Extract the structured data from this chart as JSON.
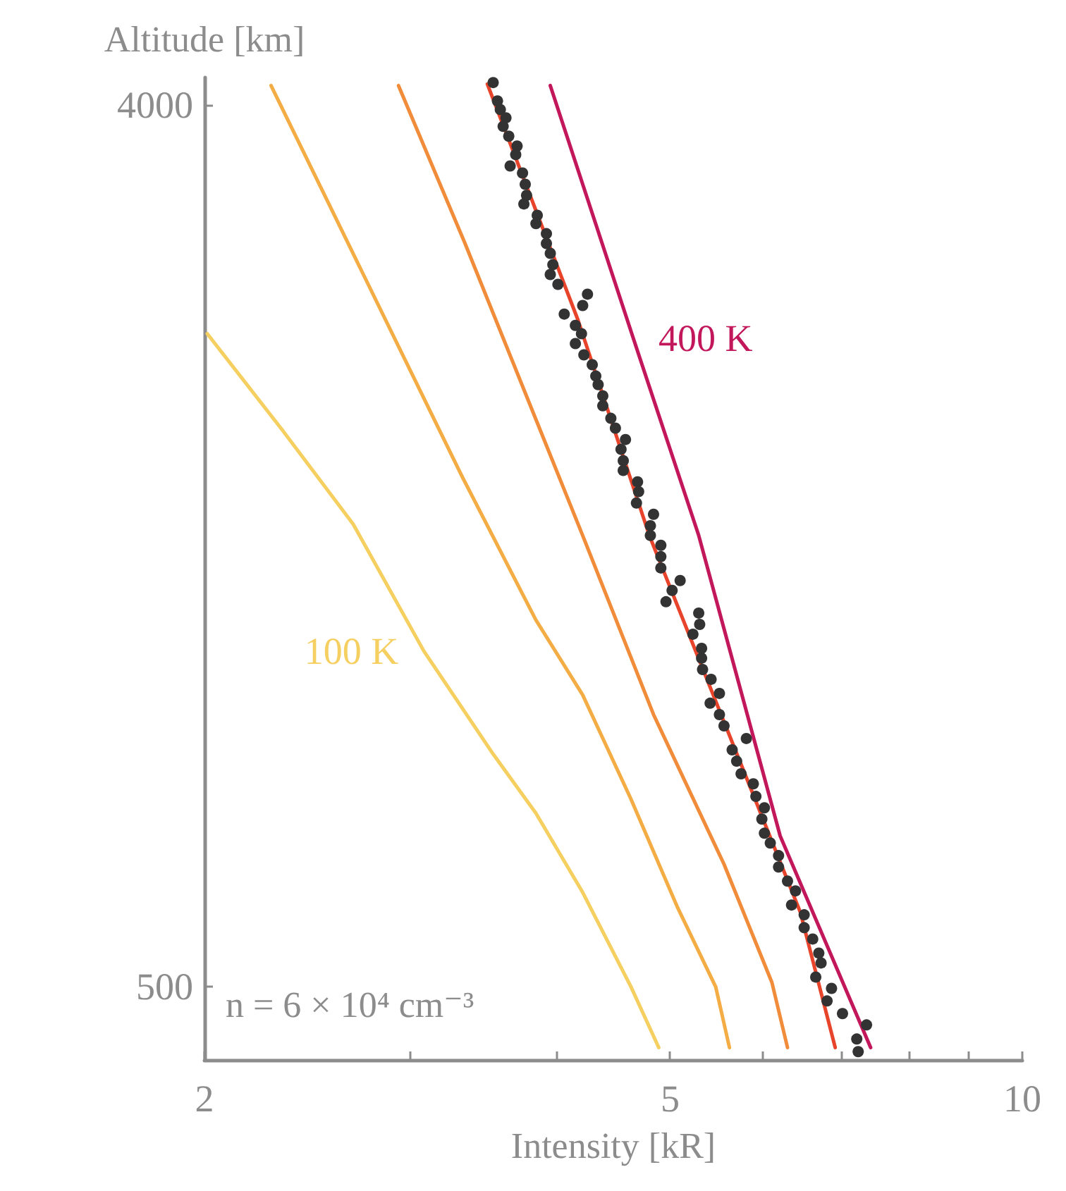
{
  "chart_data": {
    "type": "line",
    "xlabel": "Intensity [kR]",
    "ylabel": "Altitude [km]",
    "log": "x",
    "xlim": [
      2,
      10
    ],
    "xticks": [
      2,
      {
        "value": 3,
        "label": null
      },
      {
        "value": 4,
        "label": null
      },
      5,
      {
        "value": 6,
        "label": null
      },
      {
        "value": 7,
        "label": null
      },
      {
        "value": 8,
        "label": null
      },
      {
        "value": 9,
        "label": null
      },
      10
    ],
    "ylim": [
      210,
      4110
    ],
    "yticks": [
      500,
      4000
    ],
    "grid": false,
    "legend": false,
    "annotations": [
      "n = 6 × 10⁴ cm⁻³"
    ],
    "series": [
      {
        "name": "100 K",
        "color": "#f5cf5f",
        "x": [
          2.011,
          2.33,
          2.68,
          3.08,
          3.53,
          3.84,
          4.21,
          4.63,
          4.89
        ],
        "values": [
          3093,
          2712,
          2337,
          1833,
          1424,
          1189,
          875,
          500,
          259
        ]
      },
      {
        "color": "#f4ad45",
        "x": [
          2.28,
          3.32,
          3.84,
          4.21,
          4.63,
          5.07,
          5.47,
          5.62
        ],
        "values": [
          4078,
          2527,
          1956,
          1659,
          1245,
          819,
          500,
          259
        ]
      },
      {
        "color": "#f08c3a",
        "x": [
          2.93,
          3.34,
          4.21,
          4.84,
          5.56,
          6.11,
          6.3
        ],
        "values": [
          4078,
          3451,
          2292,
          1581,
          987,
          517,
          259
        ]
      },
      {
        "color": "#e8432b",
        "x": [
          3.49,
          4.17,
          4.8,
          5.78,
          6.46,
          6.92
        ],
        "values": [
          4084,
          3149,
          2292,
          1357,
          797,
          259
        ]
      },
      {
        "name": "400 K",
        "color": "#c2185b",
        "x": [
          3.95,
          4.65,
          5.29,
          6.21,
          7.42
        ],
        "values": [
          4078,
          3076,
          2292,
          1099,
          259
        ]
      },
      {
        "type": "scatter",
        "color": "#333333",
        "marker": "circle",
        "x": [
          3.53,
          3.56,
          3.58,
          3.62,
          3.6,
          3.64,
          3.7,
          3.69,
          3.65,
          3.74,
          3.76,
          3.77,
          3.75,
          3.85,
          3.84,
          3.92,
          3.92,
          3.95,
          3.97,
          3.95,
          4.01,
          4.25,
          4.21,
          4.06,
          4.15,
          4.2,
          4.15,
          4.22,
          4.29,
          4.32,
          4.34,
          4.38,
          4.38,
          4.45,
          4.49,
          4.58,
          4.54,
          4.56,
          4.56,
          4.69,
          4.7,
          4.68,
          4.84,
          4.81,
          4.81,
          4.91,
          4.91,
          4.91,
          5.1,
          5.02,
          4.96,
          5.29,
          5.3,
          5.23,
          5.32,
          5.32,
          5.33,
          5.42,
          5.51,
          5.41,
          5.51,
          5.56,
          5.81,
          5.65,
          5.7,
          5.75,
          5.89,
          5.92,
          6.02,
          5.99,
          6.02,
          6.09,
          6.19,
          6.19,
          6.3,
          6.4,
          6.35,
          6.51,
          6.51,
          6.62,
          6.7,
          6.73,
          6.66,
          6.87,
          6.81,
          7.02,
          7.36,
          7.22,
          7.24
        ],
        "values": [
          4090,
          4017,
          3983,
          3950,
          3916,
          3877,
          3838,
          3804,
          3759,
          3731,
          3686,
          3642,
          3608,
          3563,
          3530,
          3490,
          3451,
          3412,
          3367,
          3328,
          3289,
          3250,
          3205,
          3171,
          3126,
          3093,
          3054,
          3009,
          2970,
          2925,
          2891,
          2846,
          2807,
          2757,
          2718,
          2673,
          2634,
          2589,
          2550,
          2505,
          2466,
          2421,
          2376,
          2331,
          2292,
          2253,
          2208,
          2163,
          2113,
          2074,
          2029,
          1984,
          1939,
          1900,
          1844,
          1805,
          1760,
          1721,
          1665,
          1626,
          1581,
          1536,
          1486,
          1441,
          1396,
          1346,
          1306,
          1256,
          1211,
          1166,
          1110,
          1071,
          1021,
          976,
          920,
          881,
          825,
          786,
          735,
          690,
          634,
          595,
          539,
          494,
          444,
          394,
          349,
          293,
          243
        ]
      }
    ]
  }
}
